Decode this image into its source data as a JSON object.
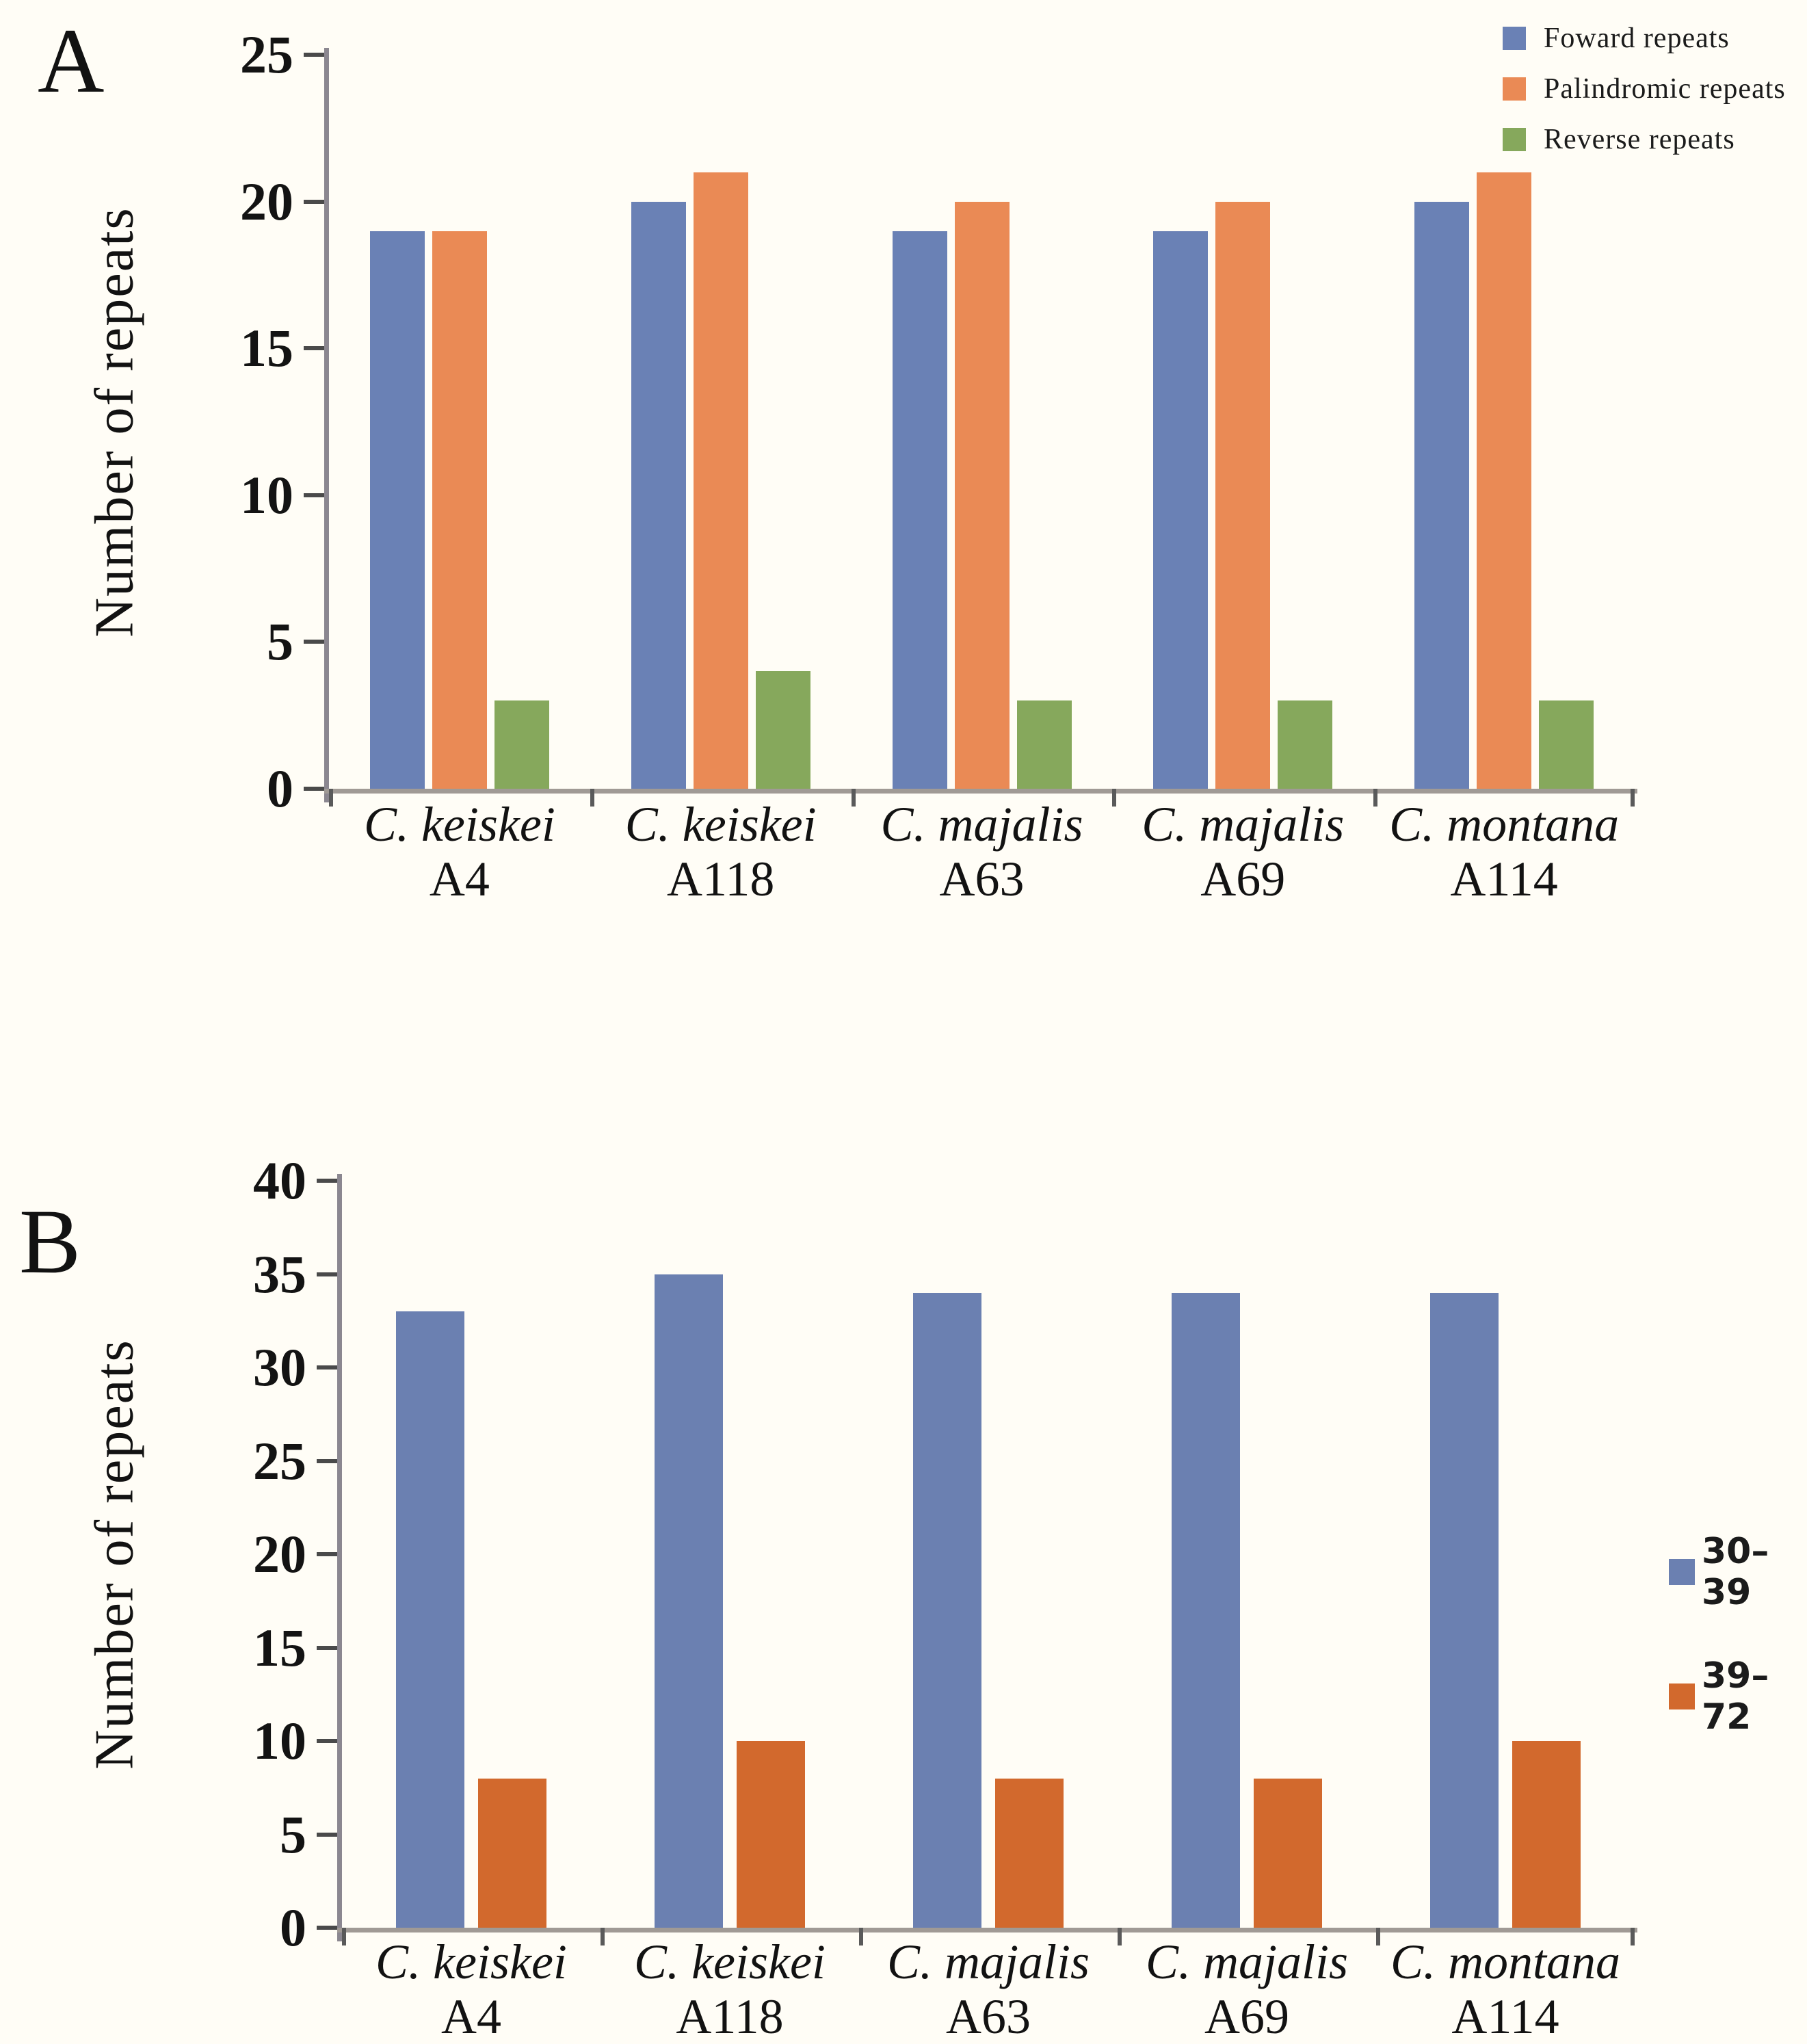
{
  "figure": {
    "background": "#fffdf6",
    "axis_line_color": "#8b8790",
    "baseline_color": "#a09a95",
    "tick_color": "#4a4a4a",
    "text_color": "#151515"
  },
  "panels": [
    {
      "label": "A",
      "ylabel": "Number of repeats"
    },
    {
      "label": "B",
      "ylabel": "Number of repeats"
    }
  ],
  "chart_data": [
    {
      "type": "bar",
      "panel": "A",
      "title": "",
      "xlabel": "",
      "ylabel": "Number of repeats",
      "ylim": [
        0,
        25
      ],
      "ytick_step": 5,
      "grid": false,
      "legend_position": "top-right",
      "categories": [
        {
          "species": "C. keiskei",
          "code": "A4"
        },
        {
          "species": "C. keiskei",
          "code": "A118"
        },
        {
          "species": "C. majalis",
          "code": "A63"
        },
        {
          "species": "C. majalis",
          "code": "A69"
        },
        {
          "species": "C. montana",
          "code": "A114"
        }
      ],
      "series": [
        {
          "name": "Foward repeats",
          "color": "#6a81b5",
          "values": [
            19,
            20,
            19,
            19,
            20
          ]
        },
        {
          "name": "Palindromic repeats",
          "color": "#ea8a55",
          "values": [
            19,
            21,
            20,
            20,
            21
          ]
        },
        {
          "name": "Reverse repeats",
          "color": "#86a85c",
          "values": [
            3,
            4,
            3,
            3,
            3
          ]
        }
      ]
    },
    {
      "type": "bar",
      "panel": "B",
      "title": "",
      "xlabel": "",
      "ylabel": "Number of repeats",
      "ylim": [
        0,
        40
      ],
      "ytick_step": 5,
      "grid": false,
      "legend_position": "right",
      "categories": [
        {
          "species": "C. keiskei",
          "code": "A4"
        },
        {
          "species": "C. keiskei",
          "code": "A118"
        },
        {
          "species": "C. majalis",
          "code": "A63"
        },
        {
          "species": "C. majalis",
          "code": "A69"
        },
        {
          "species": "C. montana",
          "code": "A114"
        }
      ],
      "series": [
        {
          "name": "30–39",
          "color": "#6b80b1",
          "values": [
            33,
            35,
            34,
            34,
            34
          ]
        },
        {
          "name": "39–72",
          "color": "#d2692d",
          "values": [
            8,
            10,
            8,
            8,
            10
          ]
        }
      ]
    }
  ]
}
